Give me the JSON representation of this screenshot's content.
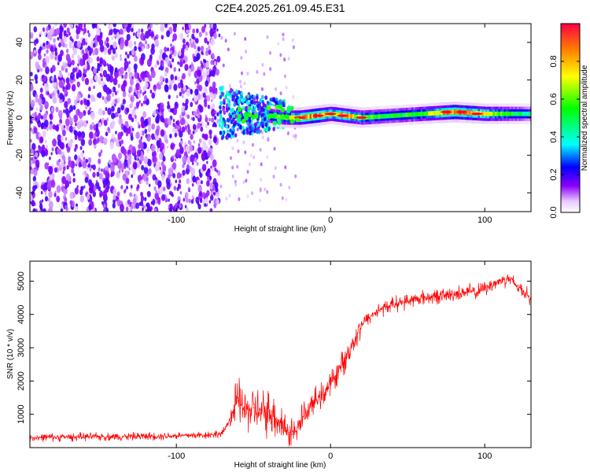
{
  "title": "C2E4.2025.261.09.45.E31",
  "colors": {
    "snr_line": "#ff0000",
    "ridge": "#00ff00",
    "scatter": "#8b00ff"
  },
  "chart_data": [
    {
      "type": "heatmap",
      "xlabel": "Height of straight line (km)",
      "ylabel": "Frequency (Hz)",
      "xlim": [
        -195,
        130
      ],
      "ylim": [
        -50,
        50
      ],
      "xticks": [
        -100,
        0,
        100
      ],
      "xtick_labels": [
        "-100",
        "0",
        "100"
      ],
      "yticks": [
        -40,
        -20,
        0,
        20,
        40
      ],
      "ytick_labels": [
        "-40",
        "-20",
        "0",
        "20",
        "40"
      ],
      "colorbar": {
        "label": "Normalized spectral amplitude",
        "range": [
          0,
          1
        ],
        "ticks": [
          0.0,
          0.2,
          0.4,
          0.6,
          0.8
        ],
        "tick_labels": [
          "0.0",
          "0.2",
          "0.4",
          "0.6",
          "0.8"
        ]
      },
      "ridge": {
        "x": [
          -70,
          -60,
          -50,
          -40,
          -30,
          -20,
          -10,
          0,
          10,
          20,
          40,
          60,
          80,
          100,
          130
        ],
        "freq": [
          2,
          4,
          2,
          1,
          0,
          0,
          1,
          2,
          1,
          0,
          1,
          2,
          3,
          2,
          2
        ],
        "amplitude": [
          0.35,
          0.4,
          0.45,
          0.55,
          0.6,
          0.8,
          0.9,
          0.7,
          0.8,
          0.6,
          0.5,
          0.6,
          0.9,
          0.7,
          0.4
        ]
      },
      "noise_region": {
        "x_range": [
          -195,
          -72
        ],
        "amplitude_range": [
          0.05,
          0.2
        ]
      }
    },
    {
      "type": "line",
      "xlabel": "Height of straight line (km)",
      "ylabel": "SNR (10 * v/v)",
      "xlim": [
        -195,
        130
      ],
      "ylim": [
        0,
        5600
      ],
      "xticks": [
        -100,
        0,
        100
      ],
      "xtick_labels": [
        "-100",
        "0",
        "100"
      ],
      "yticks": [
        1000,
        2000,
        3000,
        4000,
        5000
      ],
      "ytick_labels": [
        "1000",
        "2000",
        "3000",
        "4000",
        "5000"
      ],
      "series": [
        {
          "name": "SNR",
          "x": [
            -195,
            -170,
            -140,
            -110,
            -80,
            -70,
            -65,
            -60,
            -55,
            -50,
            -45,
            -40,
            -35,
            -30,
            -25,
            -22,
            -20,
            -15,
            -10,
            -5,
            0,
            5,
            10,
            15,
            20,
            30,
            40,
            50,
            60,
            70,
            80,
            90,
            95,
            100,
            110,
            115,
            120,
            125,
            130
          ],
          "y": [
            300,
            320,
            330,
            350,
            380,
            420,
            900,
            1400,
            1100,
            1200,
            1000,
            1100,
            900,
            600,
            400,
            500,
            800,
            1100,
            1400,
            1600,
            1900,
            2300,
            2700,
            3200,
            3700,
            4100,
            4300,
            4400,
            4500,
            4550,
            4600,
            4700,
            4650,
            4800,
            5000,
            5100,
            4900,
            4700,
            4500
          ]
        }
      ]
    }
  ]
}
